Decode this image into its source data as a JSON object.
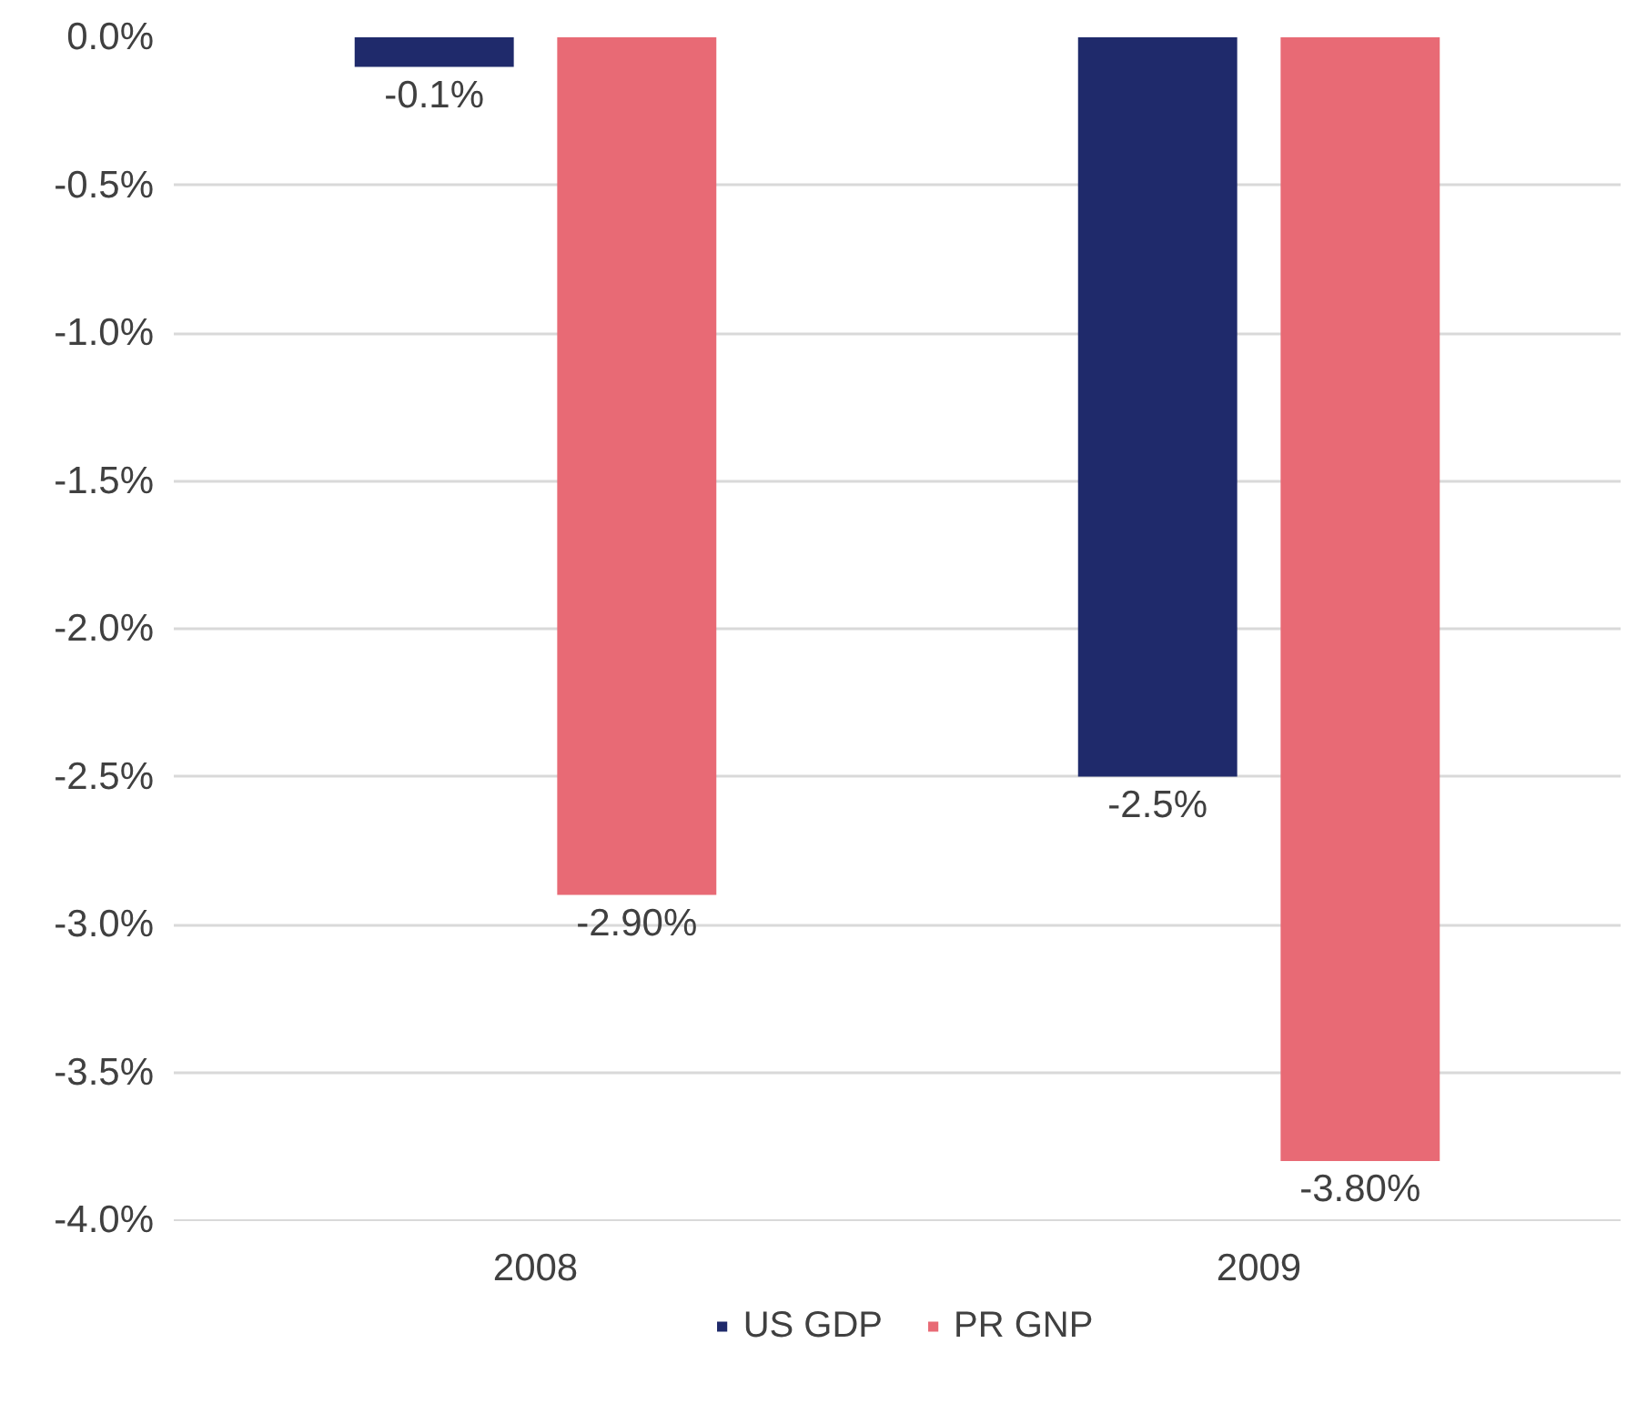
{
  "chart_data": {
    "type": "bar",
    "categories": [
      "2008",
      "2009"
    ],
    "series": [
      {
        "name": "US GDP",
        "color": "#1f2a6b",
        "values": [
          -0.1,
          -2.5
        ],
        "value_labels": [
          "-0.1%",
          "-2.5%"
        ]
      },
      {
        "name": "PR GNP",
        "color": "#e86a75",
        "values": [
          -2.9,
          -3.8
        ],
        "value_labels": [
          "-2.90%",
          "-3.80%"
        ]
      }
    ],
    "ylim": [
      -4.0,
      0.0
    ],
    "yticks": [
      {
        "value": 0.0,
        "label": "0.0%"
      },
      {
        "value": -0.5,
        "label": "-0.5%"
      },
      {
        "value": -1.0,
        "label": "-1.0%"
      },
      {
        "value": -1.5,
        "label": "-1.5%"
      },
      {
        "value": -2.0,
        "label": "-2.0%"
      },
      {
        "value": -2.5,
        "label": "-2.5%"
      },
      {
        "value": -3.0,
        "label": "-3.0%"
      },
      {
        "value": -3.5,
        "label": "-3.5%"
      },
      {
        "value": -4.0,
        "label": "-4.0%"
      }
    ],
    "grid": "y",
    "legend": "bottom"
  }
}
